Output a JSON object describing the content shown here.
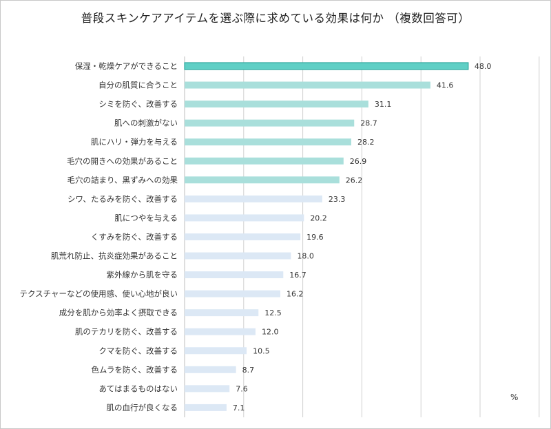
{
  "chart_data": {
    "type": "bar",
    "orientation": "horizontal",
    "title": "普段スキンケアアイテムを選ぶ際に求めている効果は何か （複数回答可）",
    "unit_label": "%",
    "xlim": [
      0,
      60
    ],
    "grid": true,
    "categories": [
      "保湿・乾燥ケアができること",
      "自分の肌質に合うこと",
      "シミを防ぐ、改善する",
      "肌への刺激がない",
      "肌にハリ・弾力を与える",
      "毛穴の開きへの効果があること",
      "毛穴の詰まり、黒ずみへの効果",
      "シワ、たるみを防ぐ、改善する",
      "肌につやを与える",
      "くすみを防ぐ、改善する",
      "肌荒れ防止、抗炎症効果があること",
      "紫外線から肌を守る",
      "テクスチャーなどの使用感、使い心地が良い",
      "成分を肌から効率よく摂取できる",
      "肌のテカリを防ぐ、改善する",
      "クマを防ぐ、改善する",
      "色ムラを防ぐ、改善する",
      "あてはまるものはない",
      "肌の血行が良くなる"
    ],
    "values": [
      48.0,
      41.6,
      31.1,
      28.7,
      28.2,
      26.9,
      26.2,
      23.3,
      20.2,
      19.6,
      18.0,
      16.7,
      16.2,
      12.5,
      12.0,
      10.5,
      8.7,
      7.6,
      7.1
    ],
    "value_labels": [
      "48.0",
      "41.6",
      "31.1",
      "28.7",
      "28.2",
      "26.9",
      "26.2",
      "23.3",
      "20.2",
      "19.6",
      "18.0",
      "16.7",
      "16.2",
      "12.5",
      "12.0",
      "10.5",
      "8.7",
      "7.6",
      "7.1"
    ],
    "colors": {
      "top1": "#5fcfc5",
      "top1_border": "#2ea89e",
      "top7": "#a9dfdb",
      "rest": "#dce8f5",
      "grid": "#d0d0d0"
    },
    "highlight_top": 7
  }
}
